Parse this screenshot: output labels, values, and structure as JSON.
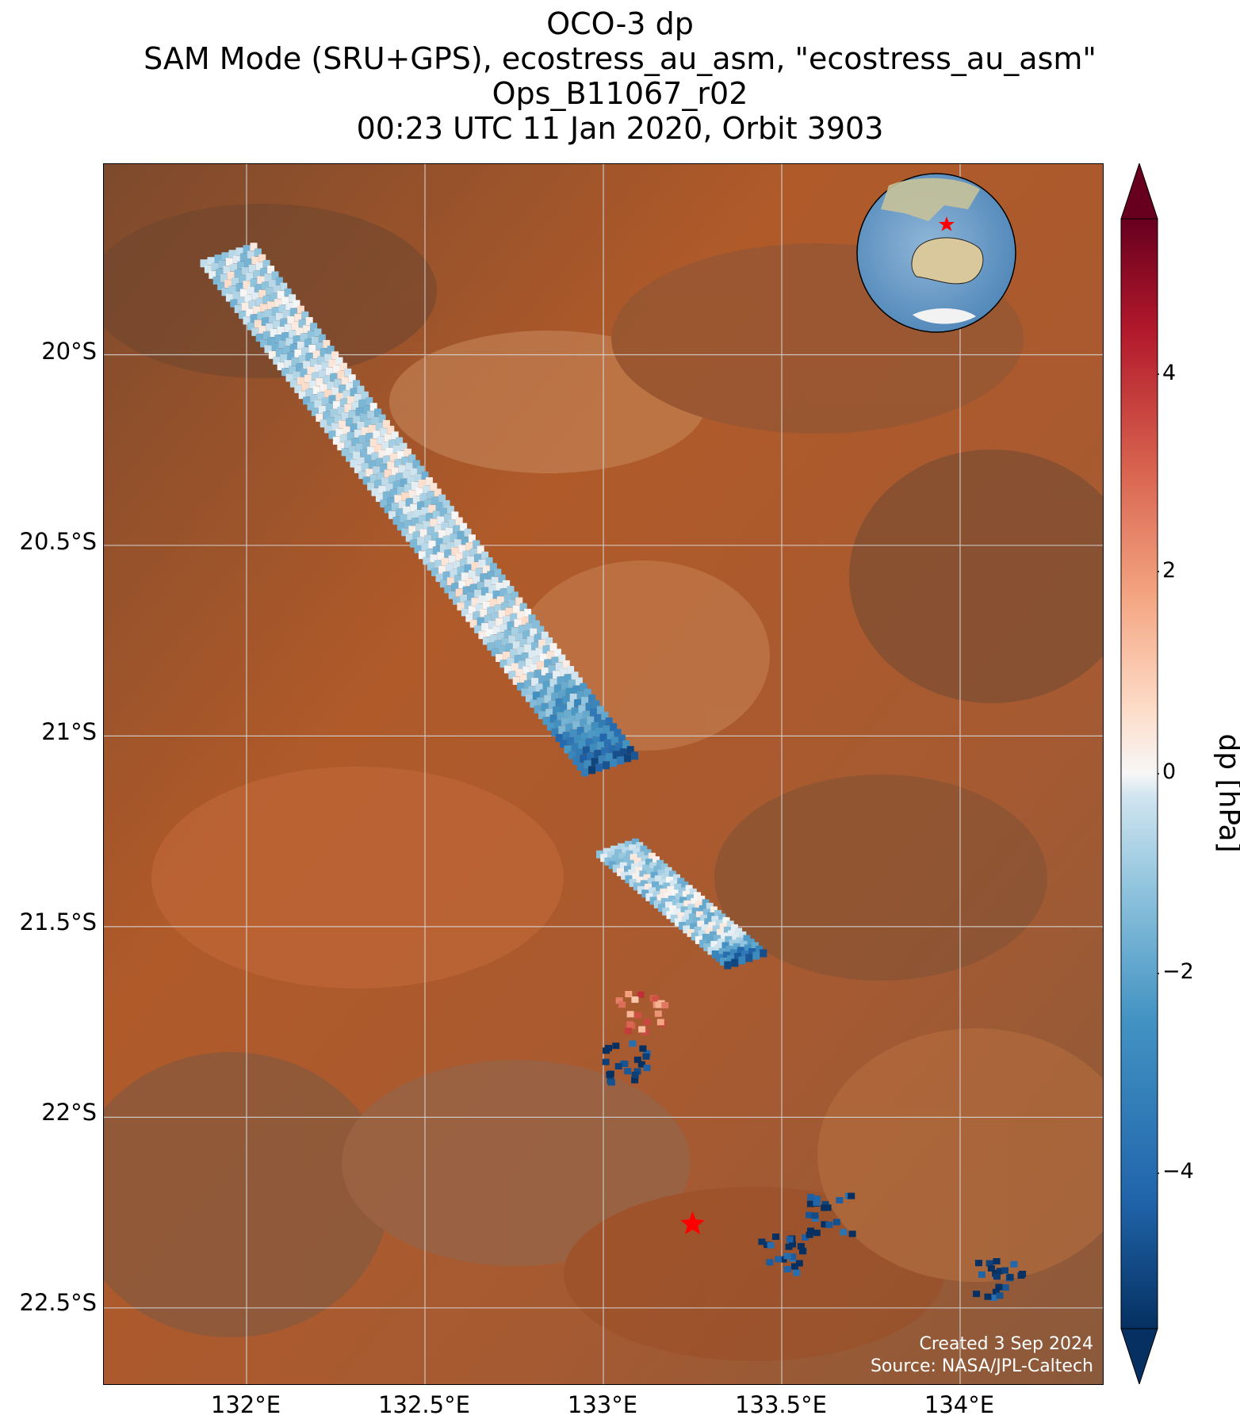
{
  "title": {
    "line1": "OCO-3 dp",
    "line2": "SAM Mode (SRU+GPS), ecostress_au_asm, \"ecostress_au_asm\"",
    "line3": "Ops_B11067_r02",
    "line4": "00:23 UTC 11 Jan 2020, Orbit 3903"
  },
  "axes": {
    "lat_labels": [
      "20°S",
      "20.5°S",
      "21°S",
      "21.5°S",
      "22°S",
      "22.5°S"
    ],
    "lon_labels": [
      "132°E",
      "132.5°E",
      "133°E",
      "133.5°E",
      "134°E"
    ],
    "lon_range": [
      131.6,
      134.4
    ],
    "lat_range": [
      -22.7,
      -19.5
    ],
    "grid": true
  },
  "colorbar": {
    "label": "dp [hPa]",
    "ticks": [
      "4",
      "2",
      "0",
      "−2",
      "−4"
    ],
    "range": [
      -5.5,
      5.5
    ],
    "colormap": "RdBu_r",
    "extend": "both"
  },
  "credit": {
    "created": "Created 3 Sep 2024",
    "source": "Source: NASA/JPL-Caltech"
  },
  "target_marker": {
    "lon": 133.25,
    "lat": -22.28,
    "symbol": "star",
    "color": "#ff0000"
  },
  "inset_globe": {
    "center": "Australia",
    "marker_color": "#ff0000"
  },
  "chart_data": {
    "type": "scatter",
    "x_label": "",
    "y_label": "",
    "note_layers": "dp soundings along SAM swath (estimated)",
    "swath_segments": [
      {
        "lon_start": 131.87,
        "lat_start": -19.75,
        "lon_end": 132.95,
        "lat_end": -21.1,
        "dp_mean": -0.6
      },
      {
        "lon_start": 132.98,
        "lat_start": -21.3,
        "lon_end": 133.35,
        "lat_end": -21.6,
        "dp_mean": -0.8
      }
    ],
    "clusters": [
      {
        "lon": 133.1,
        "lat": -21.72,
        "dp_mean": 2.5
      },
      {
        "lon": 133.05,
        "lat": -21.85,
        "dp_mean": -5.0
      },
      {
        "lon": 133.5,
        "lat": -22.35,
        "dp_mean": -5.0
      },
      {
        "lon": 133.63,
        "lat": -22.25,
        "dp_mean": -5.0
      },
      {
        "lon": 134.1,
        "lat": -22.42,
        "dp_mean": -5.0
      }
    ]
  }
}
